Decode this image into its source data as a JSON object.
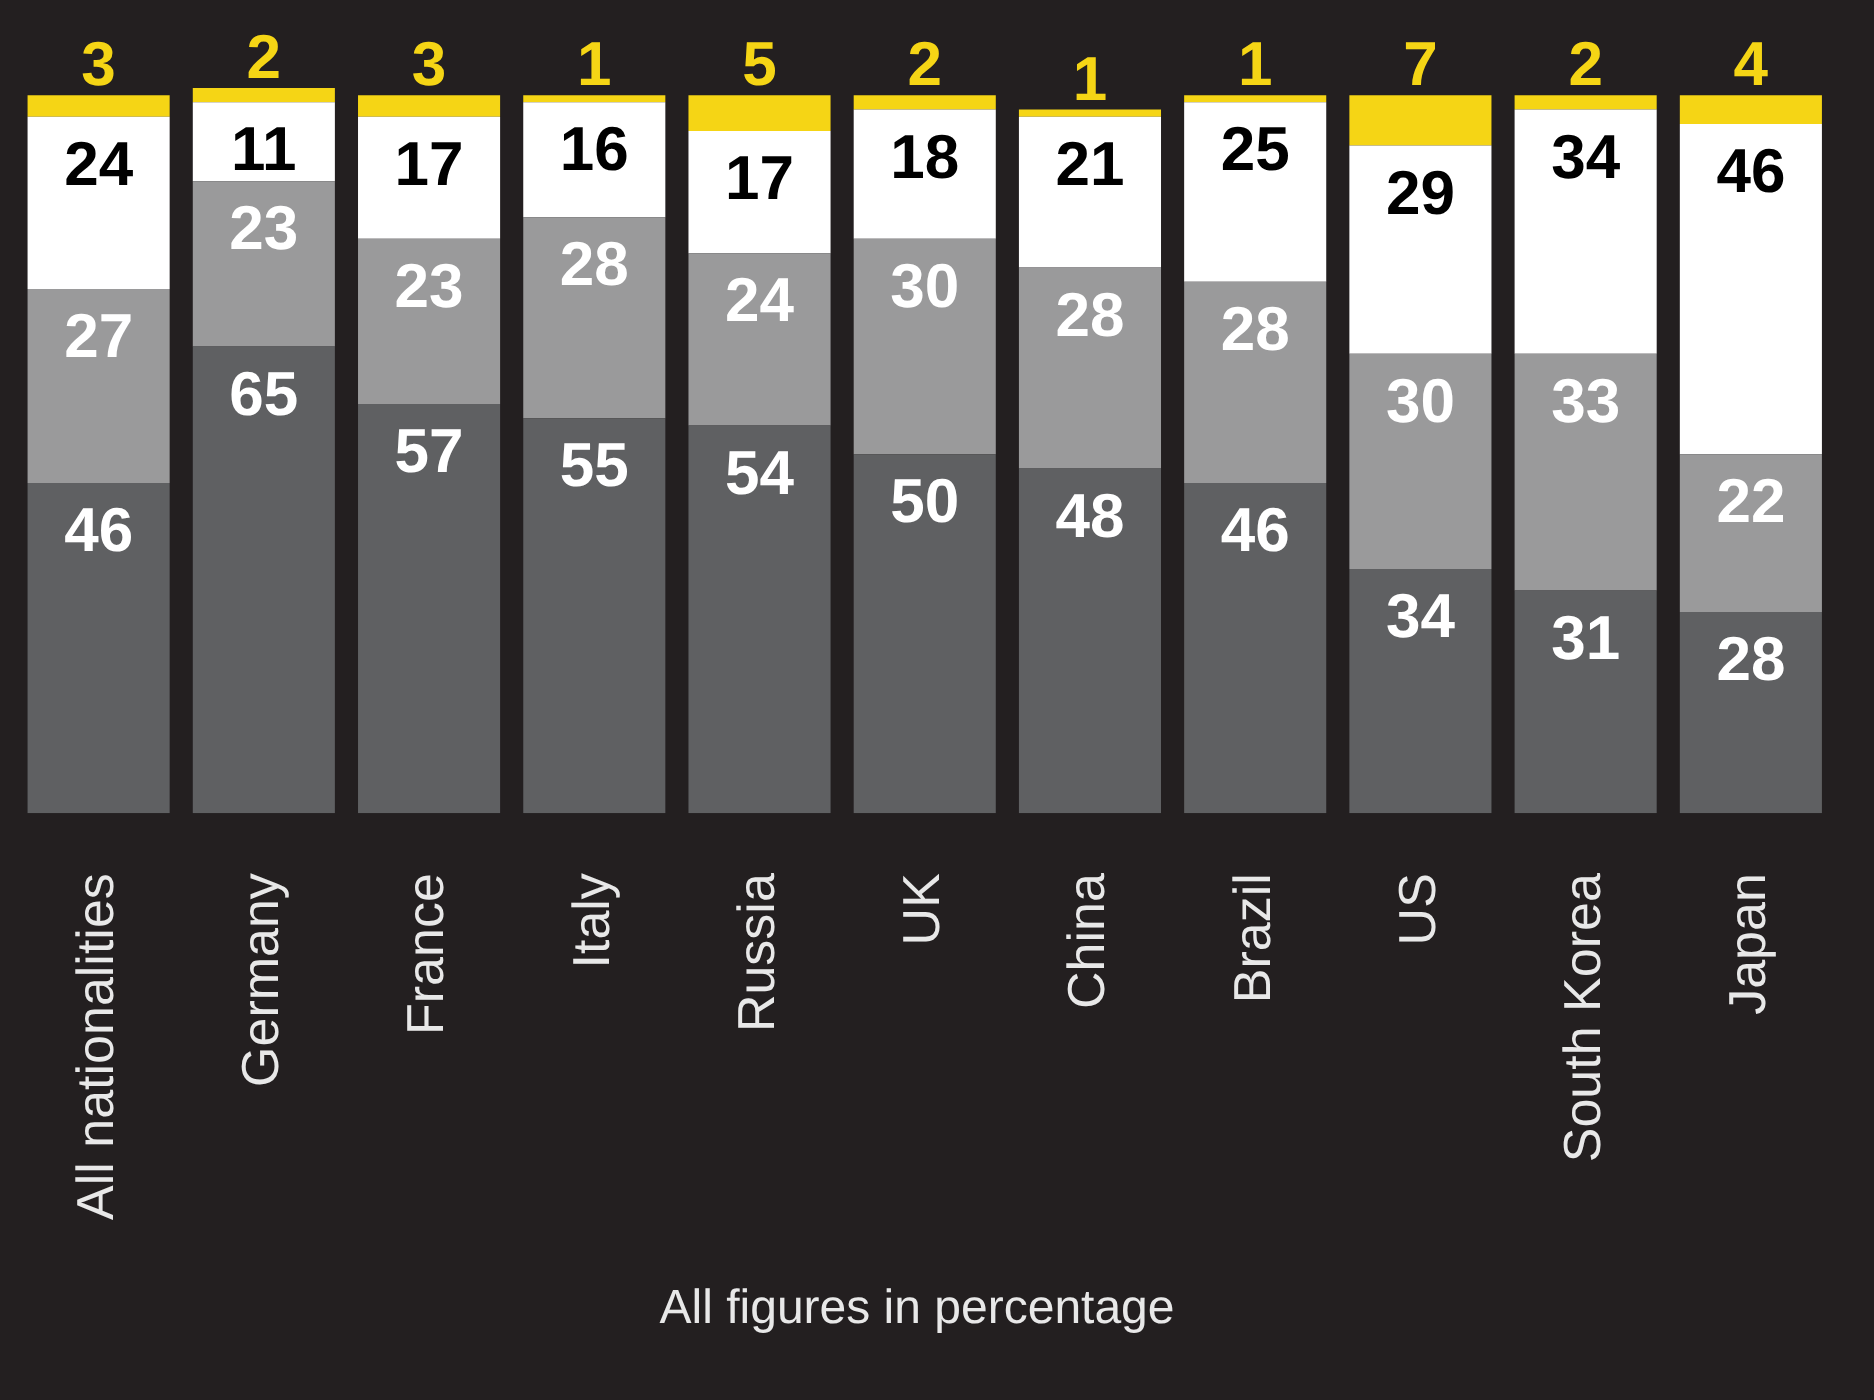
{
  "chart_data": {
    "type": "bar",
    "stacked": true,
    "categories": [
      "All nationalities",
      "Germany",
      "France",
      "Italy",
      "Russia",
      "UK",
      "China",
      "Brazil",
      "US",
      "South Korea",
      "Japan"
    ],
    "series": [
      {
        "color": "#5f6062",
        "values": [
          46,
          65,
          57,
          55,
          54,
          50,
          48,
          46,
          34,
          31,
          28
        ]
      },
      {
        "color": "#9a9a9b",
        "values": [
          27,
          23,
          23,
          28,
          24,
          30,
          28,
          28,
          30,
          33,
          22
        ]
      },
      {
        "color": "#ffffff",
        "values": [
          24,
          11,
          17,
          16,
          17,
          18,
          21,
          25,
          29,
          34,
          46
        ]
      },
      {
        "color": "#f5d515",
        "values": [
          3,
          2,
          3,
          1,
          5,
          2,
          1,
          1,
          7,
          2,
          4
        ]
      }
    ],
    "ylim": [
      0,
      101
    ],
    "tick_labels": "x",
    "legend": false,
    "data_labels": true,
    "annotations": [
      "All figures in percentage"
    ]
  }
}
